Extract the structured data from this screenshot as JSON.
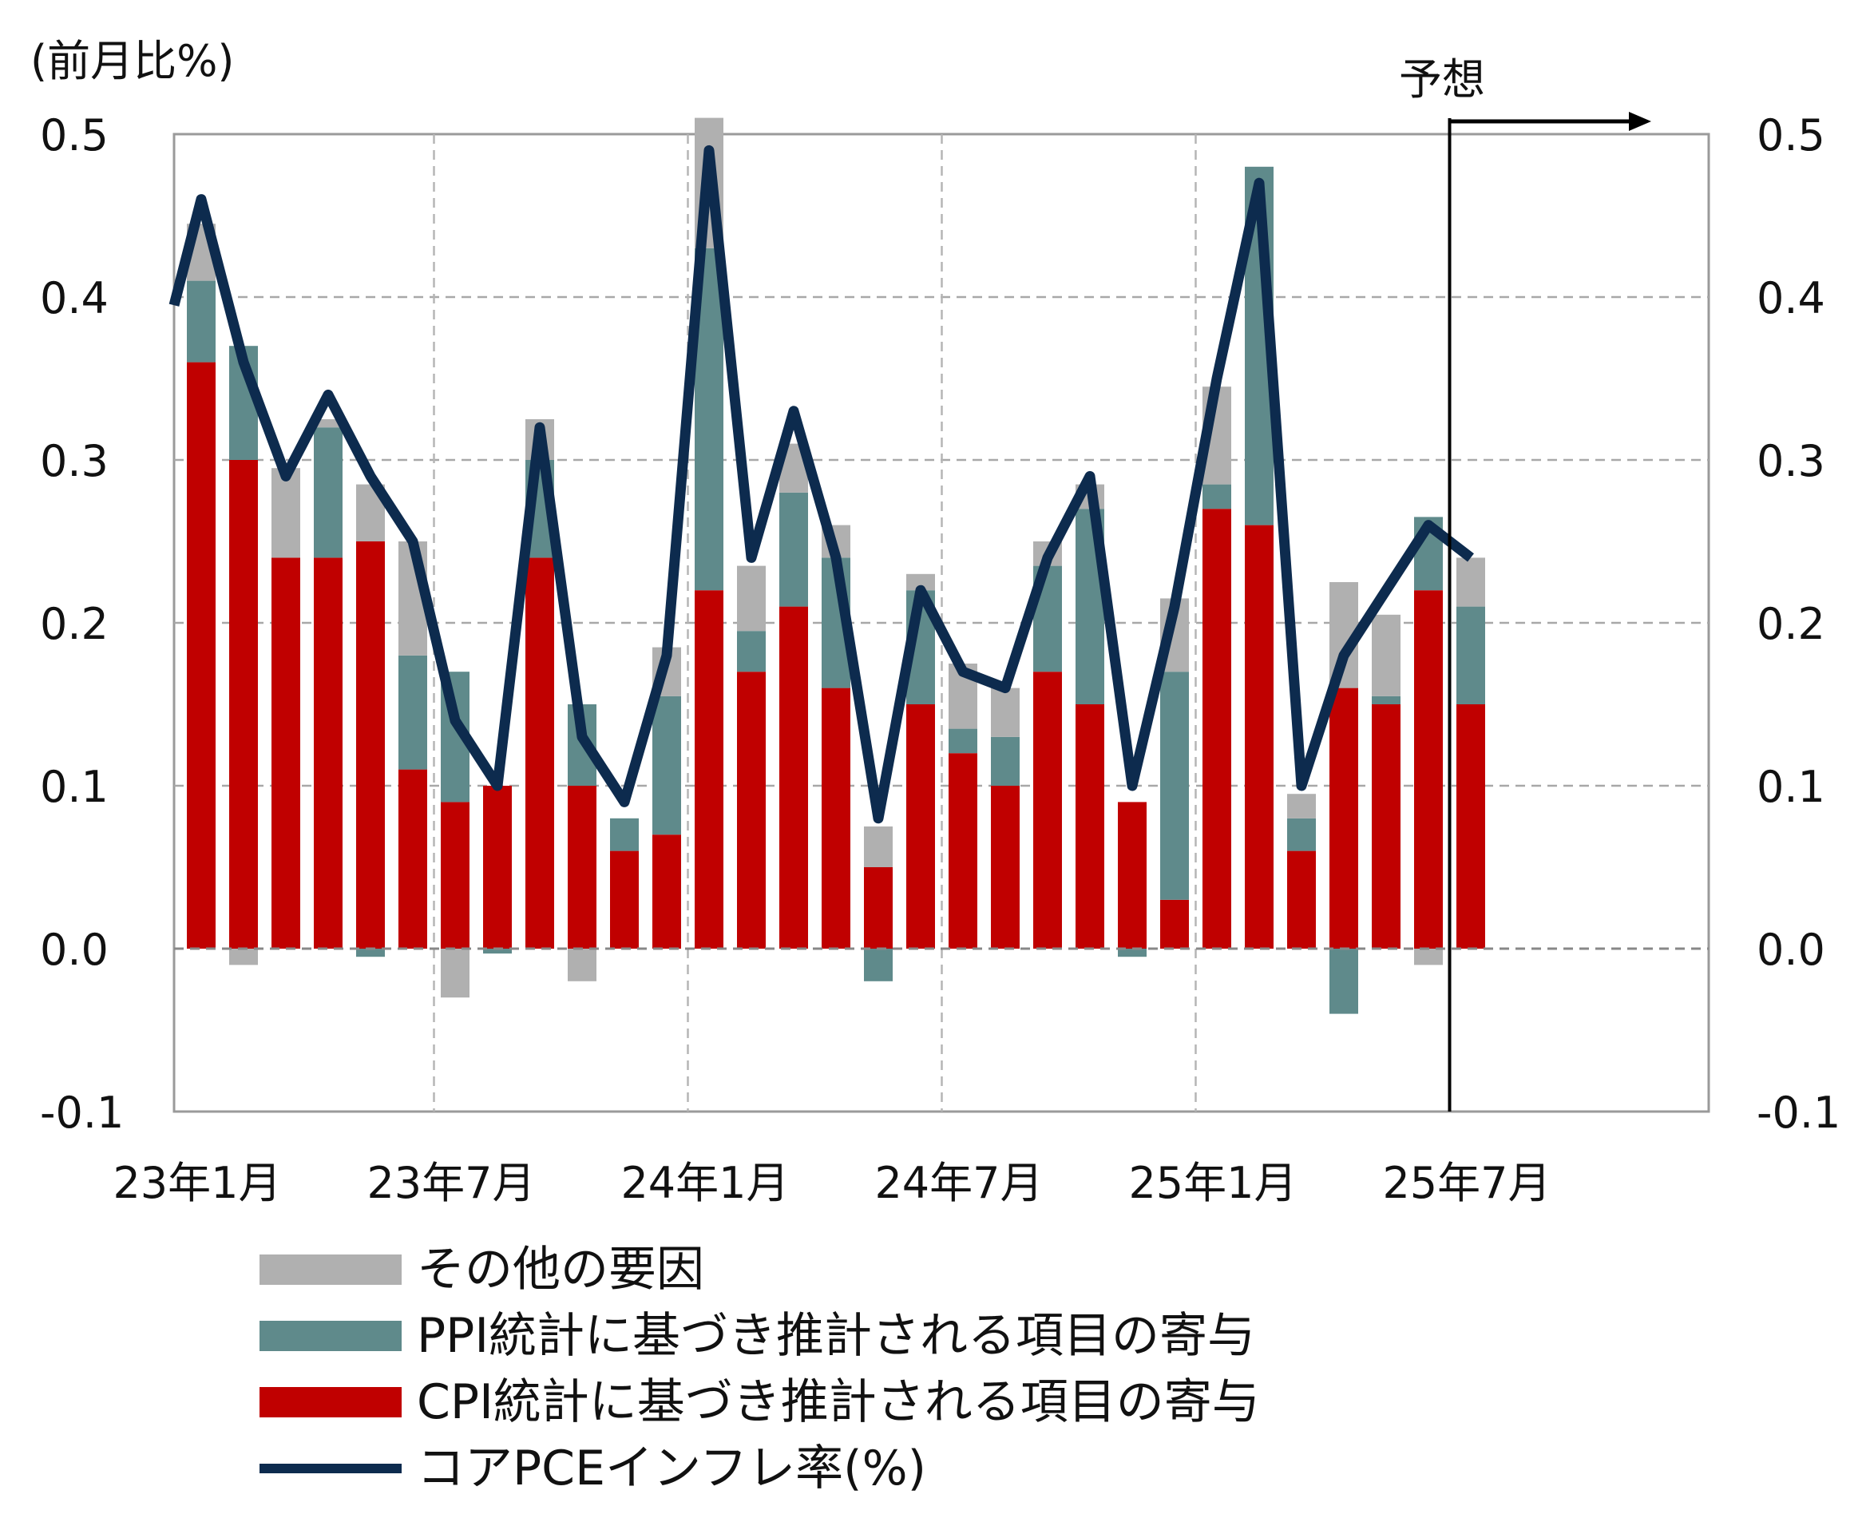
{
  "chart_data": {
    "type": "bar",
    "stacked": true,
    "unit_label": "(前月比%)",
    "forecast_label": "予想",
    "x": [
      "23年1月",
      "23年2月",
      "23年3月",
      "23年4月",
      "23年5月",
      "23年6月",
      "23年7月",
      "23年8月",
      "23年9月",
      "23年10月",
      "23年11月",
      "23年12月",
      "24年1月",
      "24年2月",
      "24年3月",
      "24年4月",
      "24年5月",
      "24年6月",
      "24年7月",
      "24年8月",
      "24年9月",
      "24年10月",
      "24年11月",
      "24年12月",
      "25年1月",
      "25年2月",
      "25年3月",
      "25年4月",
      "25年5月",
      "25年6月",
      "25年7月"
    ],
    "x_tick_labels": [
      {
        "index": 0,
        "label": "23年1月"
      },
      {
        "index": 6,
        "label": "23年7月"
      },
      {
        "index": 12,
        "label": "24年1月"
      },
      {
        "index": 18,
        "label": "24年7月"
      },
      {
        "index": 24,
        "label": "25年1月"
      },
      {
        "index": 30,
        "label": "25年7月"
      }
    ],
    "forecast_start_index": 29.5,
    "ylim": [
      -0.1,
      0.5
    ],
    "y_ticks": [
      "0.5",
      "0.4",
      "0.3",
      "0.2",
      "0.1",
      "0.0",
      "-0.1"
    ],
    "y_tick_values": [
      0.5,
      0.4,
      0.3,
      0.2,
      0.1,
      0.0,
      -0.1
    ],
    "grid": true,
    "series": [
      {
        "name": "CPI統計に基づき推計される項目の寄与",
        "kind": "bar",
        "color": "#c00000",
        "values": [
          0.36,
          0.3,
          0.24,
          0.24,
          0.25,
          0.11,
          0.09,
          0.1,
          0.24,
          0.1,
          0.06,
          0.07,
          0.22,
          0.17,
          0.21,
          0.16,
          0.05,
          0.15,
          0.12,
          0.1,
          0.17,
          0.15,
          0.09,
          0.03,
          0.27,
          0.26,
          0.06,
          0.16,
          0.15,
          0.22,
          0.15
        ]
      },
      {
        "name": "PPI統計に基づき推計される項目の寄与",
        "kind": "bar",
        "color": "#5f8a8b",
        "values": [
          0.05,
          0.07,
          0.0,
          0.08,
          -0.005,
          0.07,
          0.08,
          -0.003,
          0.06,
          0.05,
          0.02,
          0.085,
          0.21,
          0.025,
          0.07,
          0.08,
          -0.02,
          0.07,
          0.015,
          0.03,
          0.065,
          0.12,
          -0.005,
          0.14,
          0.015,
          0.22,
          0.02,
          -0.04,
          0.005,
          0.045,
          0.06
        ]
      },
      {
        "name": "その他の要因",
        "kind": "bar",
        "color": "#b0b0b0",
        "values": [
          0.035,
          -0.01,
          0.055,
          0.005,
          0.035,
          0.07,
          -0.03,
          0.0,
          0.025,
          -0.02,
          0.0,
          0.03,
          0.08,
          0.04,
          0.03,
          0.02,
          0.025,
          0.01,
          0.04,
          0.03,
          0.015,
          0.015,
          0.0,
          0.045,
          0.06,
          0.0,
          0.015,
          0.065,
          0.05,
          -0.01,
          0.03
        ]
      },
      {
        "name": "コアPCEインフレ率(%)",
        "kind": "line",
        "color": "#0d2b4e",
        "values": [
          0.46,
          0.36,
          0.29,
          0.34,
          0.29,
          0.25,
          0.14,
          0.1,
          0.32,
          0.13,
          0.09,
          0.18,
          0.49,
          0.24,
          0.33,
          0.24,
          0.08,
          0.22,
          0.17,
          0.16,
          0.24,
          0.29,
          0.1,
          0.21,
          0.35,
          0.47,
          0.1,
          0.18,
          0.22,
          0.26,
          0.24
        ]
      }
    ],
    "legend": {
      "placement": "bottom",
      "items": [
        {
          "label": "その他の要因",
          "color": "#b0b0b0",
          "kind": "bar"
        },
        {
          "label": "PPI統計に基づき推計される項目の寄与",
          "color": "#5f8a8b",
          "kind": "bar"
        },
        {
          "label": "CPI統計に基づき推計される項目の寄与",
          "color": "#c00000",
          "kind": "bar"
        },
        {
          "label": "コアPCEインフレ率(%)",
          "color": "#0d2b4e",
          "kind": "line"
        }
      ]
    }
  }
}
